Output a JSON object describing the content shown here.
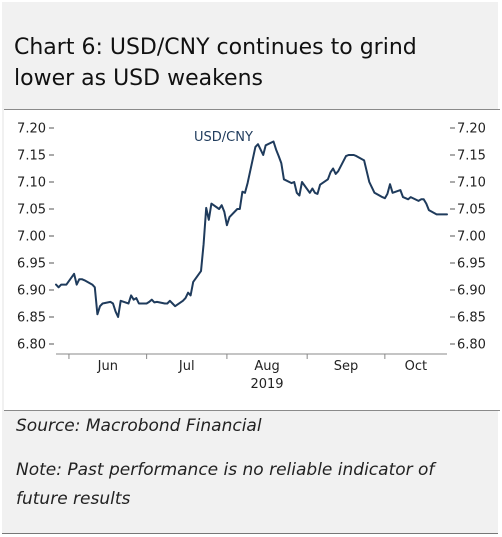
{
  "title_line1": "Chart 6: USD/CNY continues to grind",
  "title_line2": "lower as USD weakens",
  "source": "Source: Macrobond Financial",
  "note_line1": "Note: Past performance is no reliable indicator of",
  "note_line2": "future results",
  "chart_data": {
    "type": "line",
    "title": "",
    "xlabel": "2019",
    "ylabel": "",
    "ylim": [
      6.8,
      7.2
    ],
    "y_ticks": [
      "7.20",
      "7.15",
      "7.10",
      "7.05",
      "7.00",
      "6.95",
      "6.90",
      "6.85",
      "6.80"
    ],
    "y_axis_sides": [
      "left",
      "right"
    ],
    "x_tick_labels": [
      "Jun",
      "Jul",
      "Aug",
      "Sep",
      "Oct"
    ],
    "x_year_label": "2019",
    "grid": false,
    "line_color": "#1f3b5c",
    "series": [
      {
        "name": "USD/CNY",
        "x": [
          "2019-05-27",
          "2019-05-28",
          "2019-05-29",
          "2019-05-30",
          "2019-05-31",
          "2019-06-03",
          "2019-06-04",
          "2019-06-05",
          "2019-06-06",
          "2019-06-07",
          "2019-06-10",
          "2019-06-11",
          "2019-06-12",
          "2019-06-13",
          "2019-06-14",
          "2019-06-17",
          "2019-06-18",
          "2019-06-19",
          "2019-06-20",
          "2019-06-21",
          "2019-06-24",
          "2019-06-25",
          "2019-06-26",
          "2019-06-27",
          "2019-06-28",
          "2019-07-01",
          "2019-07-02",
          "2019-07-03",
          "2019-07-04",
          "2019-07-05",
          "2019-07-08",
          "2019-07-09",
          "2019-07-10",
          "2019-07-11",
          "2019-07-12",
          "2019-07-15",
          "2019-07-16",
          "2019-07-17",
          "2019-07-18",
          "2019-07-19",
          "2019-07-22",
          "2019-07-23",
          "2019-07-24",
          "2019-07-25",
          "2019-07-26",
          "2019-07-29",
          "2019-07-30",
          "2019-07-31",
          "2019-08-01",
          "2019-08-02",
          "2019-08-05",
          "2019-08-06",
          "2019-08-07",
          "2019-08-08",
          "2019-08-09",
          "2019-08-12",
          "2019-08-13",
          "2019-08-14",
          "2019-08-15",
          "2019-08-16",
          "2019-08-19",
          "2019-08-20",
          "2019-08-21",
          "2019-08-22",
          "2019-08-23",
          "2019-08-26",
          "2019-08-27",
          "2019-08-28",
          "2019-08-29",
          "2019-08-30",
          "2019-09-02",
          "2019-09-03",
          "2019-09-04",
          "2019-09-05",
          "2019-09-06",
          "2019-09-09",
          "2019-09-10",
          "2019-09-11",
          "2019-09-12",
          "2019-09-13",
          "2019-09-16",
          "2019-09-17",
          "2019-09-18",
          "2019-09-19",
          "2019-09-20",
          "2019-09-23",
          "2019-09-24",
          "2019-09-25",
          "2019-09-26",
          "2019-09-27",
          "2019-09-30",
          "2019-10-01",
          "2019-10-02",
          "2019-10-03",
          "2019-10-04",
          "2019-10-07",
          "2019-10-08",
          "2019-10-09",
          "2019-10-10",
          "2019-10-11",
          "2019-10-14",
          "2019-10-15",
          "2019-10-16",
          "2019-10-17",
          "2019-10-18",
          "2019-10-21",
          "2019-10-22",
          "2019-10-23",
          "2019-10-24",
          "2019-10-25"
        ],
        "y": [
          6.91,
          6.905,
          6.91,
          6.91,
          6.91,
          6.93,
          6.91,
          6.92,
          6.92,
          6.918,
          6.91,
          6.905,
          6.855,
          6.87,
          6.875,
          6.878,
          6.875,
          6.86,
          6.85,
          6.88,
          6.875,
          6.89,
          6.882,
          6.885,
          6.875,
          6.875,
          6.878,
          6.882,
          6.877,
          6.878,
          6.875,
          6.875,
          6.88,
          6.875,
          6.87,
          6.88,
          6.885,
          6.895,
          6.89,
          6.915,
          6.935,
          6.985,
          7.052,
          7.03,
          7.06,
          7.05,
          7.057,
          7.045,
          7.02,
          7.035,
          7.05,
          7.05,
          7.082,
          7.08,
          7.098,
          7.165,
          7.17,
          7.16,
          7.15,
          7.168,
          7.175,
          7.16,
          7.148,
          7.135,
          7.105,
          7.098,
          7.1,
          7.08,
          7.075,
          7.1,
          7.08,
          7.088,
          7.08,
          7.078,
          7.095,
          7.105,
          7.118,
          7.125,
          7.115,
          7.12,
          7.148,
          7.15,
          7.15,
          7.15,
          7.148,
          7.14,
          7.12,
          7.1,
          7.09,
          7.08,
          7.072,
          7.07,
          7.078,
          7.096,
          7.08,
          7.085,
          7.072,
          7.07,
          7.068,
          7.072,
          7.065,
          7.068,
          7.068,
          7.06,
          7.048,
          7.04,
          7.04,
          7.04,
          7.04,
          7.04
        ]
      }
    ]
  }
}
